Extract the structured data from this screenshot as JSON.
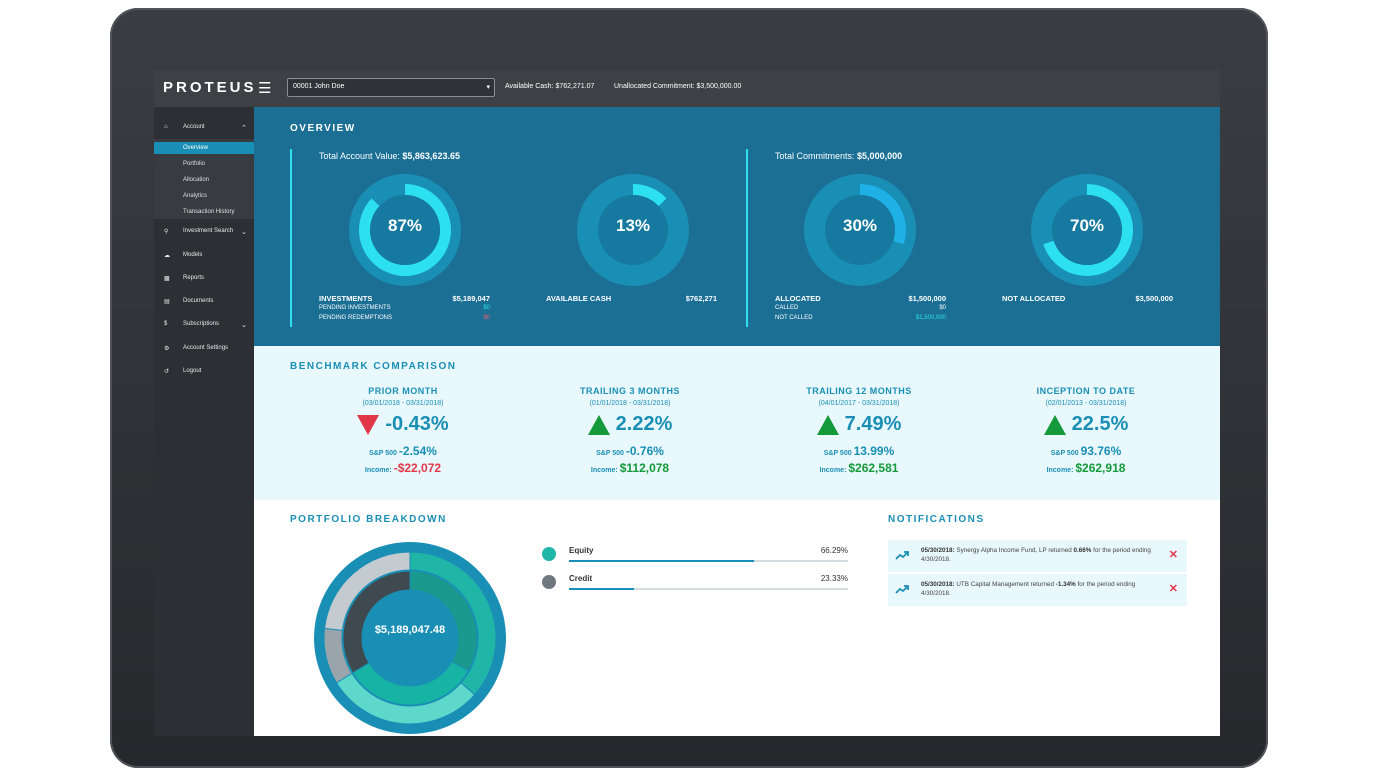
{
  "app": {
    "logo": "PROTEUS",
    "menu_icon": "hamburger-icon"
  },
  "topbar": {
    "account_select": "00001 John Doe",
    "available_cash": "Available Cash: $762,271.07",
    "unallocated_commitment": "Unallocated Commitment: $3,500,000.00"
  },
  "sidebar": {
    "account": {
      "label": "Account",
      "icon": "home-icon"
    },
    "subitems": [
      "Overview",
      "Portfolio",
      "Allocation",
      "Analytics",
      "Transaction History"
    ],
    "active_subitem": "Overview",
    "items": [
      {
        "label": "Investment Search",
        "icon": "search-icon"
      },
      {
        "label": "Models",
        "icon": "cloud-icon"
      },
      {
        "label": "Reports",
        "icon": "chart-icon"
      },
      {
        "label": "Documents",
        "icon": "document-icon"
      },
      {
        "label": "Subscriptions",
        "icon": "dollar-icon"
      },
      {
        "label": "Account Settings",
        "icon": "gear-icon"
      },
      {
        "label": "Logout",
        "icon": "logout-icon"
      }
    ]
  },
  "overview": {
    "title": "OVERVIEW",
    "total_account_value_label": "Total Account Value:",
    "total_account_value": "$5,863,623.65",
    "total_commitments_label": "Total Commitments:",
    "total_commitments": "$5,000,000",
    "investments": {
      "pct_label": "87%",
      "pct": 0.87,
      "label": "INVESTMENTS",
      "value": "$5,189,047",
      "pending_investments_label": "PENDING INVESTMENTS",
      "pending_investments": "$0",
      "pending_redemptions_label": "PENDING REDEMPTIONS",
      "pending_redemptions": "$0"
    },
    "available_cash": {
      "pct_label": "13%",
      "pct": 0.13,
      "label": "AVAILABLE CASH",
      "value": "$762,271"
    },
    "allocated": {
      "pct_label": "30%",
      "pct": 0.3,
      "label": "ALLOCATED",
      "value": "$1,500,000",
      "called_label": "CALLED",
      "called": "$0",
      "not_called_label": "NOT CALLED",
      "not_called": "$1,500,000"
    },
    "not_allocated": {
      "pct_label": "70%",
      "pct": 0.7,
      "label": "NOT ALLOCATED",
      "value": "$3,500,000"
    }
  },
  "benchmark": {
    "title": "BENCHMARK COMPARISON",
    "sp_label": "S&P 500",
    "income_label": "Income:",
    "periods": [
      {
        "name": "PRIOR MONTH",
        "dates": "(03/01/2018 - 03/31/2018)",
        "return": "-0.43%",
        "direction": "down",
        "sp": "-2.54%",
        "income": "-$22,072",
        "income_sign": "neg"
      },
      {
        "name": "TRAILING 3 MONTHS",
        "dates": "(01/01/2018 - 03/31/2018)",
        "return": "2.22%",
        "direction": "up",
        "sp": "-0.76%",
        "income": "$112,078",
        "income_sign": "pos"
      },
      {
        "name": "TRAILING 12 MONTHS",
        "dates": "(04/01/2017 - 03/31/2018)",
        "return": "7.49%",
        "direction": "up",
        "sp": "13.99%",
        "income": "$262,581",
        "income_sign": "pos"
      },
      {
        "name": "INCEPTION TO DATE",
        "dates": "(02/01/2013 - 03/31/2018)",
        "return": "22.5%",
        "direction": "up",
        "sp": "93.76%",
        "income": "$262,918",
        "income_sign": "pos"
      }
    ]
  },
  "portfolio": {
    "title": "PORTFOLIO BREAKDOWN",
    "center_value": "$5,189,047.48",
    "legend": [
      {
        "name": "Equity",
        "pct_label": "66.29%",
        "pct": 0.6629,
        "color": "#1fb6a8"
      },
      {
        "name": "Credit",
        "pct_label": "23.33%",
        "pct": 0.2333,
        "color": "#6f7880"
      }
    ]
  },
  "notifications": {
    "title": "NOTIFICATIONS",
    "items": [
      {
        "date": "05/30/2018:",
        "text_before": "Synergy Alpha Income Fund, LP returned",
        "value": "0.66%",
        "sign": "pos",
        "text_after": "for the period ending 4/30/2018.",
        "icon": "trend-up-icon"
      },
      {
        "date": "05/30/2018:",
        "text_before": "UTB Capital Management returned",
        "value": "-1.34%",
        "sign": "neg",
        "text_after": "for the period ending 4/30/2018.",
        "icon": "trend-up-icon"
      }
    ]
  },
  "colors": {
    "overview_bg": "#1b6f94",
    "accent": "#1a8fb5",
    "bright": "#2de0f0",
    "neg": "#e03848",
    "pos": "#149a3a"
  }
}
